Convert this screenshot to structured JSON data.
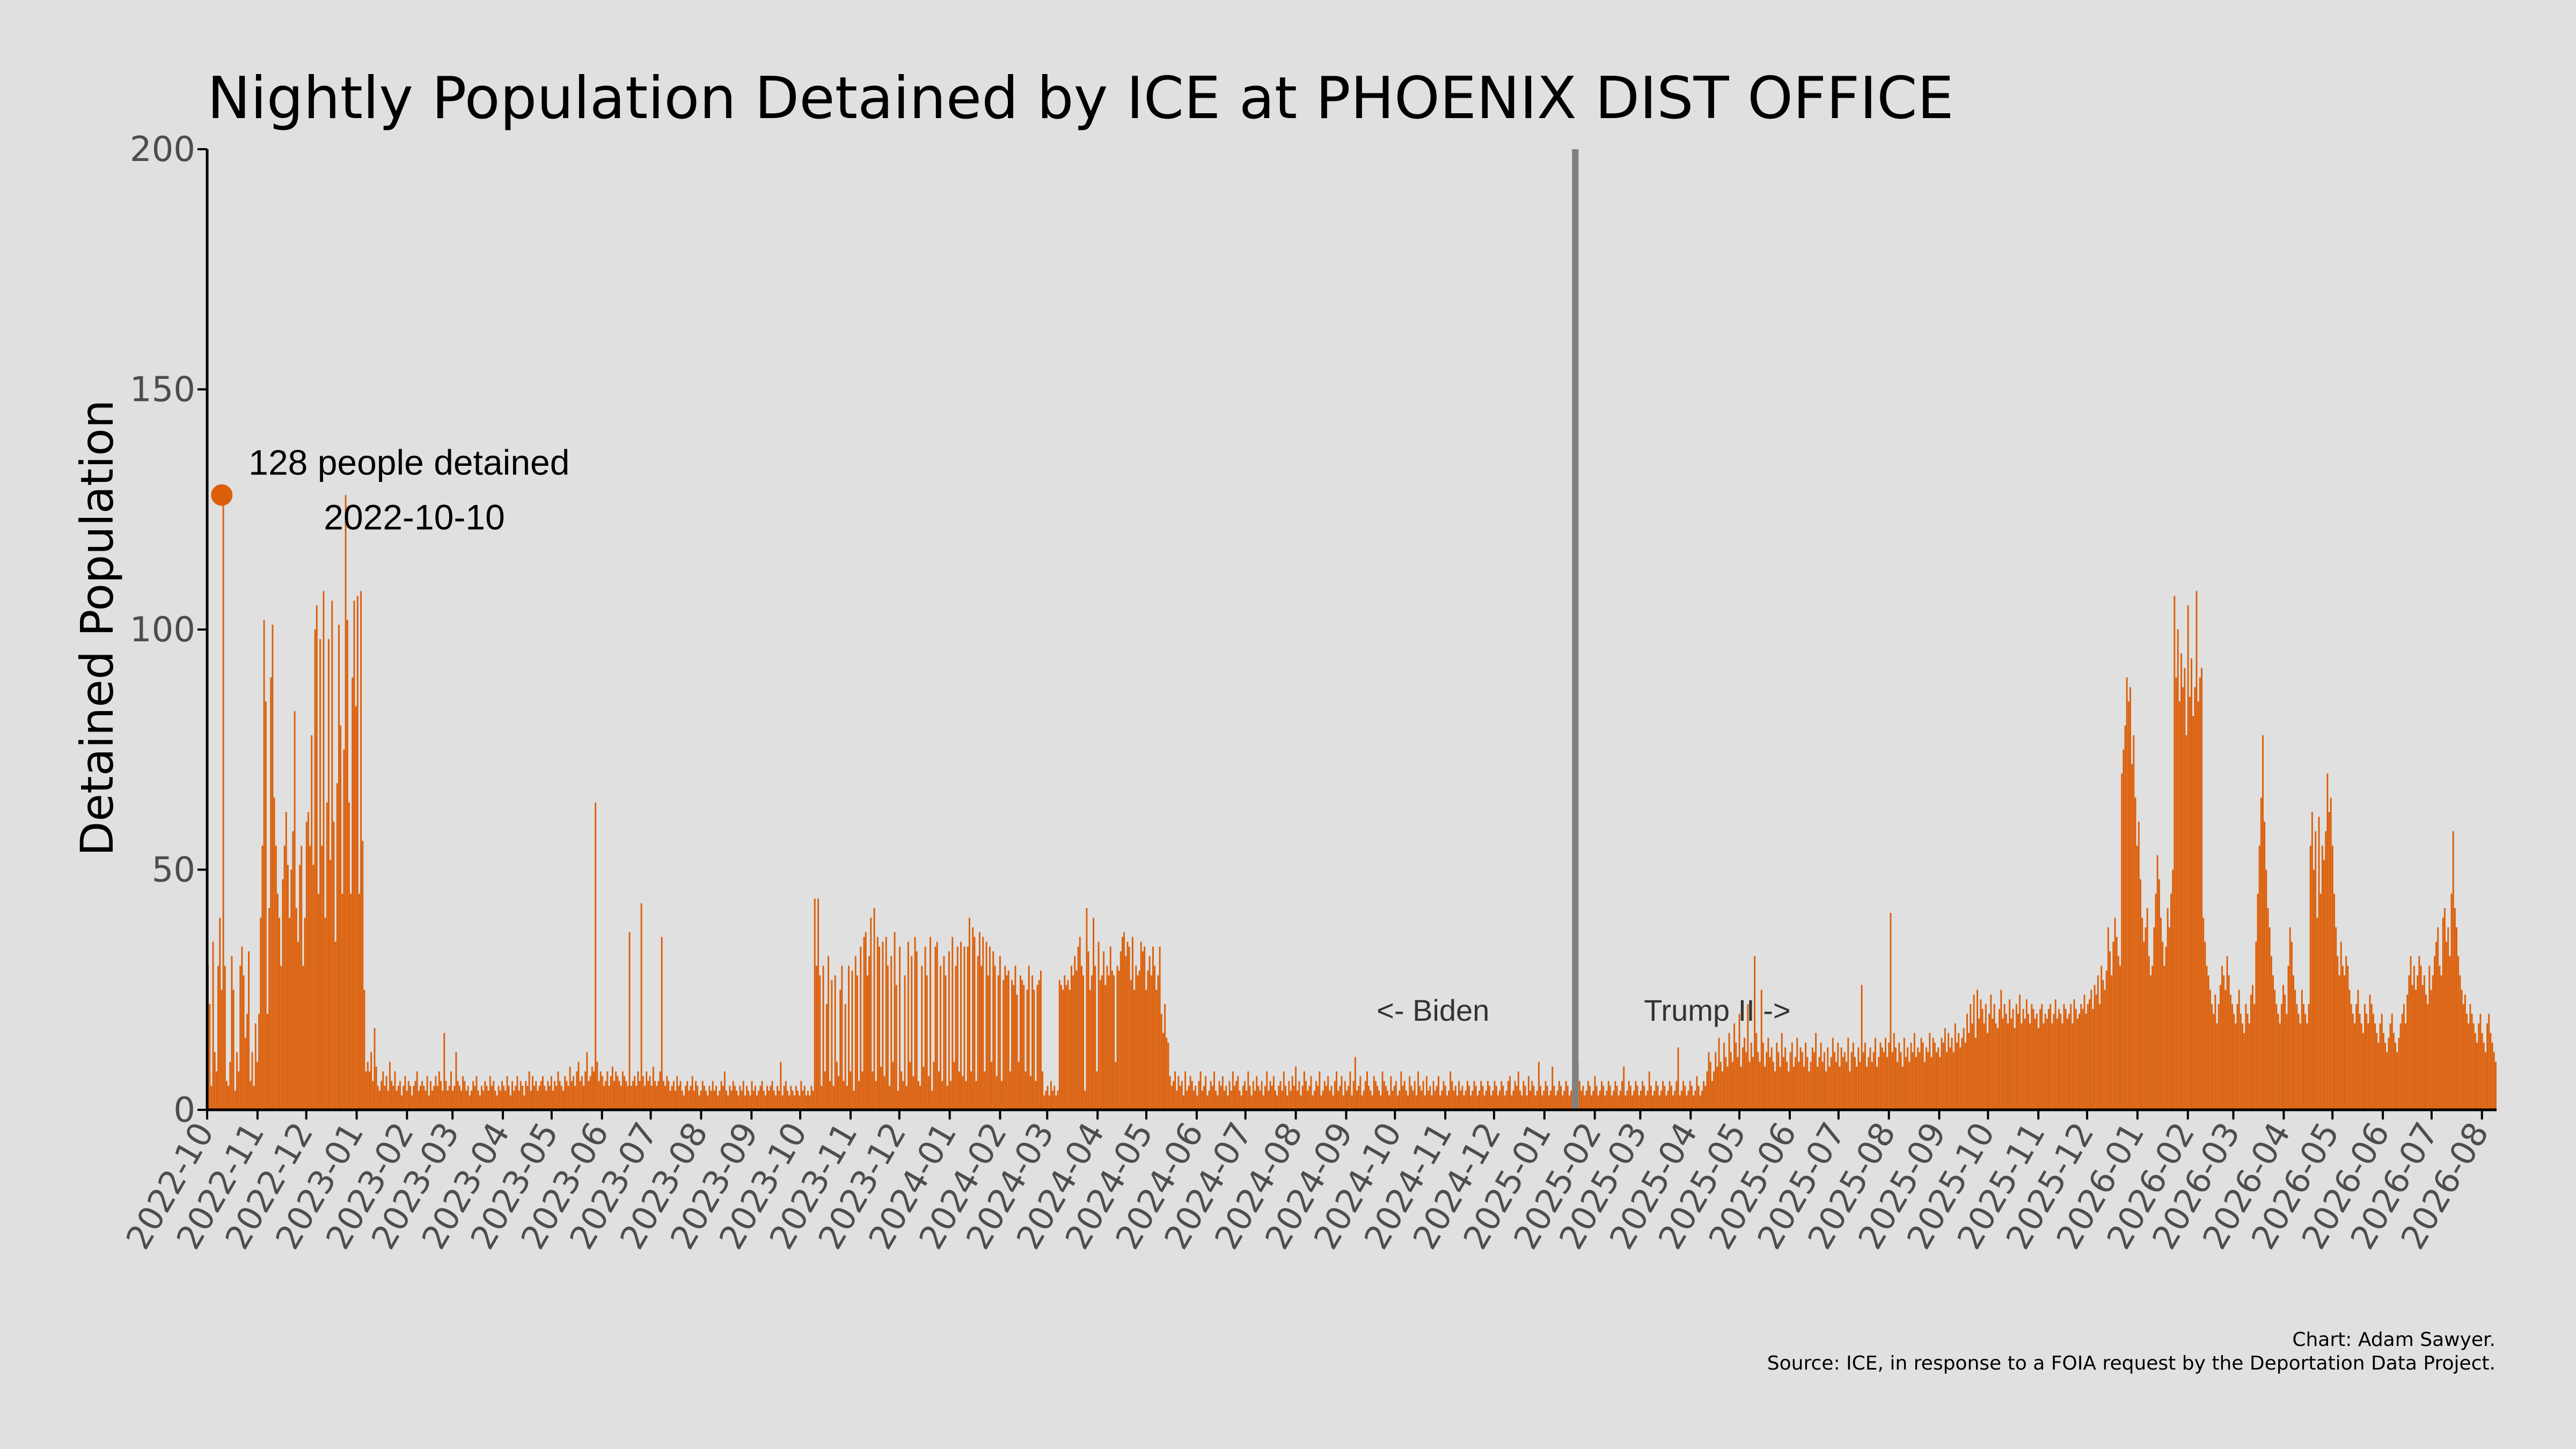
{
  "chart_data": {
    "type": "bar",
    "title": "Nightly Population Detained by ICE at PHOENIX DIST OFFICE",
    "ylabel": "Detained Population",
    "xlabel": "",
    "ylim": [
      0,
      200
    ],
    "y_ticks": [
      "0",
      "50",
      "100",
      "150",
      "200"
    ],
    "x_range": [
      "2022-10-01",
      "2026-08-10"
    ],
    "x_tick_labels": [
      "2022-10",
      "2022-11",
      "2022-12",
      "2023-01",
      "2023-02",
      "2023-03",
      "2023-04",
      "2023-05",
      "2023-06",
      "2023-07",
      "2023-08",
      "2023-09",
      "2023-10",
      "2023-11",
      "2023-12",
      "2024-01",
      "2024-02",
      "2024-03",
      "2024-04",
      "2024-05",
      "2024-06",
      "2024-07",
      "2024-08",
      "2024-09",
      "2024-10",
      "2024-11",
      "2024-12",
      "2025-01",
      "2025-02",
      "2025-03",
      "2025-04",
      "2025-05",
      "2025-06",
      "2025-07",
      "2025-08",
      "2025-09",
      "2025-10",
      "2025-11",
      "2025-12",
      "2026-01",
      "2026-02",
      "2026-03",
      "2026-04",
      "2026-05",
      "2026-06",
      "2026-07",
      "2026-08"
    ],
    "grid": false,
    "bar_color": "#dc5e08",
    "highlight": {
      "date": "2022-10-10",
      "value": 128,
      "label_line1": "128 people detained",
      "label_line2": "2022-10-10"
    },
    "divider": {
      "date": "2025-01-20",
      "left_label": "<- Biden",
      "right_label": "Trump II ->",
      "color": "#808080"
    },
    "series": [
      {
        "values": [
          30,
          22,
          5,
          35,
          12,
          8,
          30,
          40,
          25,
          128,
          30,
          6,
          5,
          10,
          32,
          25,
          4,
          12,
          8,
          30,
          34,
          28,
          15,
          20,
          33,
          6,
          12,
          5,
          18,
          10,
          20,
          40,
          55,
          102,
          85,
          20,
          42,
          90,
          101,
          65,
          55,
          45,
          40,
          30,
          48,
          55,
          62,
          51,
          40,
          50,
          58,
          83,
          42,
          35,
          51,
          55,
          30,
          40,
          60,
          62,
          55,
          78,
          51,
          100,
          105,
          45,
          98,
          55,
          108,
          40,
          64,
          98,
          52,
          106,
          60,
          35,
          68,
          101,
          80,
          45,
          75,
          128,
          102,
          64,
          45,
          90,
          106,
          84,
          107,
          45,
          108,
          56,
          25,
          8,
          10,
          8,
          12,
          6,
          17,
          9,
          5,
          4,
          6,
          8,
          5,
          7,
          4,
          10,
          6,
          5,
          8,
          4,
          5,
          6,
          3,
          5,
          7,
          4,
          6,
          5,
          3,
          5,
          6,
          8,
          4,
          5,
          6,
          5,
          4,
          7,
          3,
          6,
          4,
          5,
          7,
          5,
          8,
          6,
          4,
          16,
          6,
          4,
          5,
          8,
          4,
          5,
          12,
          6,
          5,
          4,
          7,
          6,
          4,
          5,
          3,
          4,
          6,
          5,
          7,
          4,
          3,
          5,
          4,
          6,
          5,
          4,
          7,
          5,
          6,
          4,
          3,
          5,
          4,
          6,
          5,
          4,
          7,
          5,
          3,
          6,
          4,
          5,
          7,
          4,
          6,
          5,
          3,
          6,
          5,
          8,
          4,
          7,
          5,
          6,
          4,
          5,
          6,
          7,
          5,
          4,
          6,
          5,
          7,
          4,
          6,
          5,
          8,
          6,
          5,
          4,
          7,
          6,
          5,
          9,
          6,
          7,
          5,
          8,
          10,
          6,
          7,
          5,
          8,
          12,
          6,
          7,
          9,
          8,
          64,
          10,
          6,
          8,
          7,
          5,
          6,
          8,
          5,
          7,
          9,
          6,
          8,
          7,
          6,
          5,
          8,
          7,
          6,
          5,
          37,
          5,
          6,
          7,
          5,
          8,
          6,
          43,
          7,
          5,
          8,
          6,
          7,
          5,
          9,
          6,
          5,
          6,
          8,
          36,
          6,
          5,
          7,
          6,
          4,
          5,
          6,
          4,
          7,
          5,
          6,
          4,
          3,
          5,
          6,
          4,
          5,
          7,
          4,
          6,
          5,
          3,
          4,
          6,
          5,
          4,
          3,
          5,
          4,
          6,
          4,
          5,
          3,
          4,
          6,
          5,
          8,
          4,
          3,
          5,
          4,
          6,
          5,
          4,
          3,
          5,
          4,
          6,
          3,
          5,
          4,
          3,
          6,
          4,
          5,
          3,
          4,
          5,
          6,
          4,
          3,
          5,
          4,
          5,
          6,
          4,
          3,
          5,
          4,
          10,
          3,
          5,
          6,
          4,
          3,
          5,
          4,
          3,
          5,
          4,
          3,
          6,
          4,
          5,
          3,
          4,
          3,
          5,
          4,
          44,
          30,
          44,
          28,
          5,
          30,
          8,
          22,
          32,
          6,
          27,
          5,
          28,
          10,
          7,
          25,
          30,
          6,
          22,
          5,
          30,
          8,
          29,
          4,
          32,
          28,
          6,
          34,
          8,
          36,
          37,
          28,
          32,
          40,
          8,
          42,
          6,
          36,
          34,
          9,
          35,
          7,
          36,
          30,
          5,
          32,
          10,
          37,
          26,
          4,
          34,
          8,
          6,
          28,
          5,
          35,
          10,
          32,
          7,
          36,
          33,
          6,
          5,
          30,
          9,
          34,
          28,
          7,
          36,
          4,
          10,
          34,
          35,
          8,
          30,
          6,
          32,
          28,
          5,
          33,
          6,
          36,
          10,
          30,
          34,
          8,
          35,
          7,
          34,
          6,
          34,
          40,
          8,
          38,
          36,
          6,
          32,
          37,
          30,
          36,
          8,
          35,
          28,
          34,
          10,
          33,
          30,
          7,
          28,
          32,
          6,
          27,
          30,
          28,
          29,
          8,
          27,
          26,
          30,
          24,
          10,
          28,
          27,
          26,
          8,
          25,
          30,
          7,
          28,
          25,
          6,
          26,
          27,
          29,
          8,
          3,
          4,
          5,
          3,
          6,
          4,
          5,
          3,
          4,
          27,
          26,
          25,
          28,
          26,
          27,
          25,
          30,
          28,
          32,
          29,
          34,
          36,
          30,
          28,
          4,
          42,
          33,
          25,
          28,
          40,
          30,
          8,
          35,
          27,
          28,
          33,
          26,
          30,
          28,
          34,
          29,
          28,
          10,
          30,
          29,
          33,
          36,
          37,
          32,
          35,
          34,
          27,
          36,
          25,
          30,
          28,
          29,
          35,
          33,
          34,
          25,
          29,
          32,
          28,
          34,
          30,
          25,
          28,
          34,
          20,
          16,
          22,
          15,
          14,
          7,
          5,
          6,
          8,
          4,
          7,
          5,
          6,
          3,
          8,
          4,
          5,
          7,
          6,
          4,
          5,
          3,
          6,
          8,
          4,
          5,
          7,
          3,
          4,
          6,
          5,
          8,
          4,
          3,
          6,
          5,
          7,
          4,
          5,
          3,
          6,
          4,
          8,
          5,
          6,
          7,
          4,
          3,
          5,
          6,
          4,
          8,
          5,
          3,
          6,
          4,
          7,
          5,
          4,
          6,
          3,
          5,
          8,
          4,
          6,
          5,
          7,
          4,
          3,
          5,
          6,
          4,
          8,
          5,
          3,
          6,
          4,
          7,
          5,
          9,
          4,
          6,
          3,
          5,
          8,
          6,
          4,
          5,
          7,
          3,
          4,
          6,
          5,
          8,
          3,
          4,
          6,
          5,
          7,
          4,
          5,
          3,
          6,
          8,
          4,
          5,
          7,
          3,
          6,
          4,
          5,
          8,
          3,
          6,
          11,
          4,
          5,
          7,
          3,
          4,
          6,
          8,
          5,
          4,
          3,
          7,
          6,
          5,
          4,
          3,
          8,
          6,
          5,
          4,
          3,
          7,
          4,
          5,
          6,
          3,
          4,
          8,
          5,
          6,
          4,
          3,
          7,
          5,
          4,
          6,
          3,
          8,
          5,
          4,
          6,
          3,
          7,
          4,
          5,
          3,
          6,
          4,
          5,
          7,
          3,
          4,
          6,
          5,
          3,
          4,
          8,
          6,
          4,
          5,
          3,
          6,
          4,
          5,
          3,
          4,
          6,
          5,
          3,
          4,
          6,
          5,
          3,
          4,
          6,
          5,
          3,
          4,
          6,
          5,
          3,
          4,
          6,
          5,
          3,
          4,
          6,
          5,
          3,
          4,
          6,
          7,
          3,
          4,
          6,
          5,
          8,
          4,
          3,
          6,
          5,
          3,
          7,
          4,
          6,
          5,
          3,
          4,
          10,
          5,
          3,
          4,
          6,
          5,
          3,
          4,
          9,
          5,
          3,
          4,
          6,
          5,
          3,
          4,
          6,
          5,
          3,
          4,
          6,
          5,
          3,
          10,
          6,
          4,
          5,
          3,
          4,
          6,
          5,
          3,
          4,
          7,
          5,
          3,
          4,
          6,
          5,
          3,
          4,
          6,
          5,
          3,
          4,
          6,
          5,
          3,
          4,
          6,
          9,
          3,
          4,
          6,
          5,
          3,
          4,
          6,
          5,
          3,
          4,
          6,
          5,
          3,
          4,
          8,
          5,
          3,
          4,
          6,
          5,
          3,
          4,
          6,
          5,
          3,
          4,
          6,
          5,
          3,
          4,
          6,
          13,
          3,
          4,
          6,
          5,
          3,
          4,
          6,
          5,
          3,
          4,
          7,
          5,
          3,
          4,
          6,
          5,
          8,
          12,
          10,
          6,
          8,
          12,
          9,
          15,
          10,
          8,
          14,
          11,
          9,
          16,
          12,
          10,
          18,
          14,
          11,
          20,
          9,
          13,
          15,
          12,
          22,
          10,
          14,
          11,
          32,
          16,
          12,
          10,
          25,
          14,
          9,
          12,
          15,
          11,
          13,
          10,
          8,
          14,
          12,
          9,
          16,
          11,
          13,
          10,
          8,
          12,
          14,
          9,
          11,
          15,
          10,
          13,
          12,
          9,
          14,
          11,
          8,
          10,
          13,
          12,
          16,
          9,
          11,
          14,
          10,
          12,
          8,
          13,
          9,
          11,
          15,
          12,
          10,
          14,
          9,
          13,
          11,
          12,
          10,
          15,
          8,
          12,
          14,
          11,
          9,
          13,
          10,
          26,
          12,
          14,
          9,
          11,
          13,
          10,
          12,
          15,
          9,
          11,
          14,
          13,
          12,
          15,
          11,
          14,
          41,
          12,
          16,
          13,
          10,
          14,
          12,
          9,
          15,
          11,
          13,
          10,
          14,
          12,
          16,
          11,
          13,
          12,
          15,
          14,
          10,
          13,
          12,
          16,
          11,
          15,
          14,
          12,
          13,
          11,
          15,
          14,
          17,
          12,
          16,
          13,
          15,
          12,
          18,
          14,
          16,
          13,
          15,
          17,
          14,
          20,
          16,
          22,
          18,
          24,
          15,
          25,
          19,
          23,
          21,
          18,
          22,
          16,
          20,
          24,
          19,
          22,
          18,
          17,
          21,
          25,
          19,
          22,
          20,
          18,
          23,
          19,
          21,
          17,
          22,
          20,
          24,
          18,
          21,
          19,
          23,
          20,
          18,
          22,
          21,
          19,
          20,
          17,
          21,
          22,
          18,
          20,
          19,
          21,
          22,
          18,
          20,
          23,
          19,
          21,
          20,
          18,
          22,
          21,
          19,
          20,
          22,
          18,
          23,
          21,
          19,
          20,
          22,
          21,
          24,
          20,
          22,
          23,
          25,
          21,
          26,
          24,
          28,
          22,
          30,
          27,
          25,
          29,
          38,
          33,
          28,
          35,
          40,
          36,
          32,
          30,
          70,
          75,
          80,
          90,
          85,
          88,
          72,
          78,
          65,
          55,
          60,
          48,
          40,
          35,
          38,
          42,
          32,
          28,
          30,
          38,
          45,
          53,
          48,
          40,
          35,
          30,
          34,
          42,
          38,
          45,
          50,
          107,
          90,
          100,
          85,
          95,
          88,
          92,
          78,
          105,
          86,
          94,
          82,
          88,
          108,
          85,
          90,
          92,
          40,
          35,
          30,
          28,
          25,
          22,
          20,
          24,
          18,
          22,
          26,
          30,
          28,
          25,
          32,
          28,
          24,
          22,
          20,
          18,
          22,
          25,
          20,
          18,
          16,
          22,
          20,
          18,
          24,
          26,
          22,
          35,
          45,
          55,
          65,
          78,
          60,
          50,
          42,
          38,
          32,
          28,
          25,
          22,
          20,
          18,
          22,
          26,
          24,
          20,
          30,
          38,
          35,
          28,
          25,
          22,
          20,
          18,
          25,
          22,
          20,
          18,
          22,
          55,
          62,
          50,
          58,
          40,
          61,
          45,
          55,
          52,
          58,
          70,
          62,
          65,
          55,
          45,
          38,
          32,
          28,
          35,
          30,
          28,
          32,
          30,
          25,
          22,
          20,
          18,
          22,
          25,
          20,
          18,
          16,
          22,
          20,
          18,
          24,
          22,
          20,
          18,
          16,
          14,
          18,
          20,
          16,
          14,
          12,
          15,
          18,
          20,
          16,
          14,
          12,
          15,
          18,
          20,
          22,
          18,
          24,
          28,
          32,
          26,
          30,
          25,
          28,
          32,
          30,
          26,
          28,
          24,
          22,
          30,
          25,
          28,
          32,
          35,
          38,
          30,
          28,
          40,
          42,
          35,
          38,
          32,
          45,
          58,
          42,
          38,
          32,
          28,
          25,
          22,
          24,
          20,
          18,
          22,
          20,
          18,
          16,
          14,
          18,
          20,
          16,
          14,
          12,
          18,
          20,
          16,
          14,
          12,
          10
        ]
      }
    ],
    "credit_line1": "Chart: Adam Sawyer.",
    "credit_line2": "Source: ICE, in response to a FOIA request by the Deportation Data Project."
  }
}
